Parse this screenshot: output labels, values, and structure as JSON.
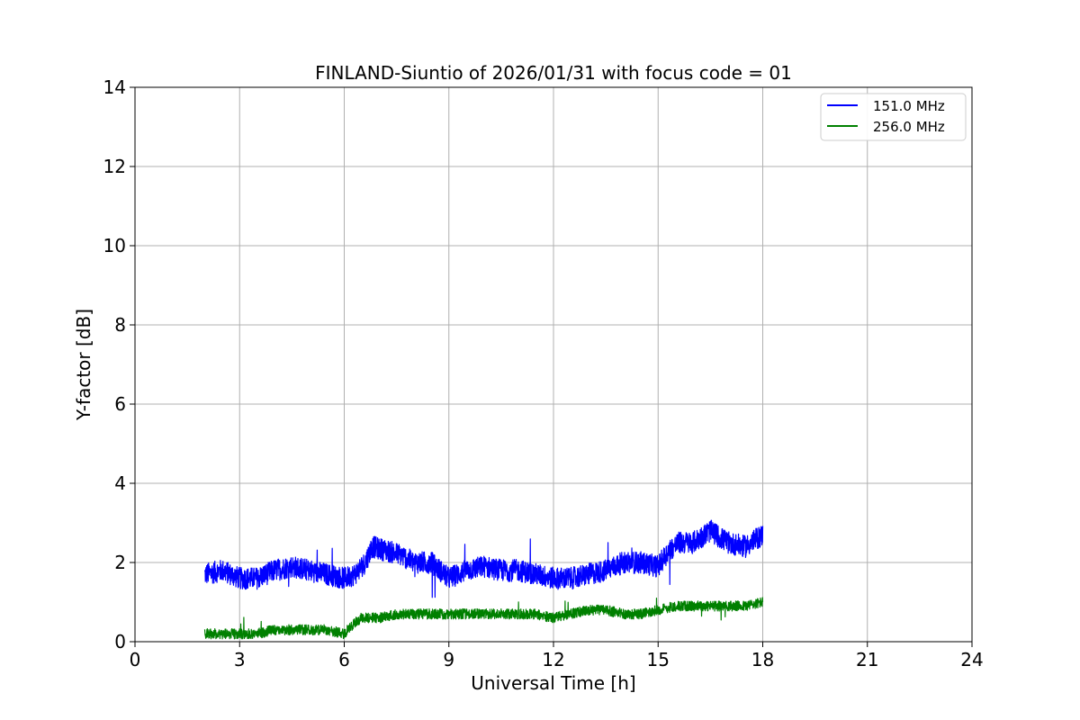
{
  "chart_data": {
    "type": "line",
    "title": "FINLAND-Siuntio of 2026/01/31 with focus code = 01",
    "xlabel": "Universal Time [h]",
    "ylabel": "Y-factor [dB]",
    "xlim": [
      0,
      24
    ],
    "ylim": [
      0,
      14
    ],
    "xticks": [
      "0",
      "3",
      "6",
      "9",
      "12",
      "15",
      "18",
      "21",
      "24"
    ],
    "yticks": [
      "0",
      "2",
      "4",
      "6",
      "8",
      "10",
      "12",
      "14"
    ],
    "grid": true,
    "legend_position": "top-right",
    "series": [
      {
        "name": "151.0 MHz",
        "color": "#0000ff",
        "x": [
          2.0,
          2.5,
          3.0,
          3.5,
          4.0,
          4.5,
          5.0,
          5.5,
          6.0,
          6.3,
          6.6,
          6.8,
          7.2,
          7.6,
          8.0,
          8.5,
          9.0,
          9.5,
          10.0,
          10.5,
          11.0,
          11.5,
          12.0,
          12.5,
          13.0,
          13.5,
          14.0,
          14.5,
          15.0,
          15.3,
          15.6,
          16.0,
          16.5,
          17.0,
          17.5,
          18.0
        ],
        "values": [
          1.7,
          1.8,
          1.6,
          1.6,
          1.8,
          1.9,
          1.8,
          1.7,
          1.6,
          1.7,
          2.0,
          2.4,
          2.3,
          2.2,
          2.0,
          2.0,
          1.6,
          1.8,
          1.9,
          1.8,
          1.8,
          1.7,
          1.6,
          1.6,
          1.7,
          1.8,
          2.0,
          2.0,
          1.9,
          2.3,
          2.5,
          2.5,
          2.8,
          2.5,
          2.4,
          2.7
        ]
      },
      {
        "name": "256.0 MHz",
        "color": "#008000",
        "x": [
          2.0,
          2.5,
          3.0,
          3.5,
          4.0,
          4.5,
          5.0,
          5.5,
          6.0,
          6.2,
          6.5,
          7.0,
          7.5,
          8.0,
          8.5,
          9.0,
          9.5,
          10.0,
          10.5,
          11.0,
          11.5,
          12.0,
          12.5,
          13.0,
          13.5,
          14.0,
          14.5,
          15.0,
          15.5,
          16.0,
          16.5,
          17.0,
          17.5,
          18.0
        ],
        "values": [
          0.2,
          0.2,
          0.2,
          0.2,
          0.3,
          0.3,
          0.3,
          0.3,
          0.2,
          0.4,
          0.6,
          0.6,
          0.7,
          0.7,
          0.7,
          0.7,
          0.7,
          0.7,
          0.7,
          0.7,
          0.7,
          0.6,
          0.7,
          0.8,
          0.8,
          0.7,
          0.7,
          0.8,
          0.9,
          0.9,
          0.9,
          0.9,
          0.9,
          1.0
        ]
      }
    ]
  }
}
